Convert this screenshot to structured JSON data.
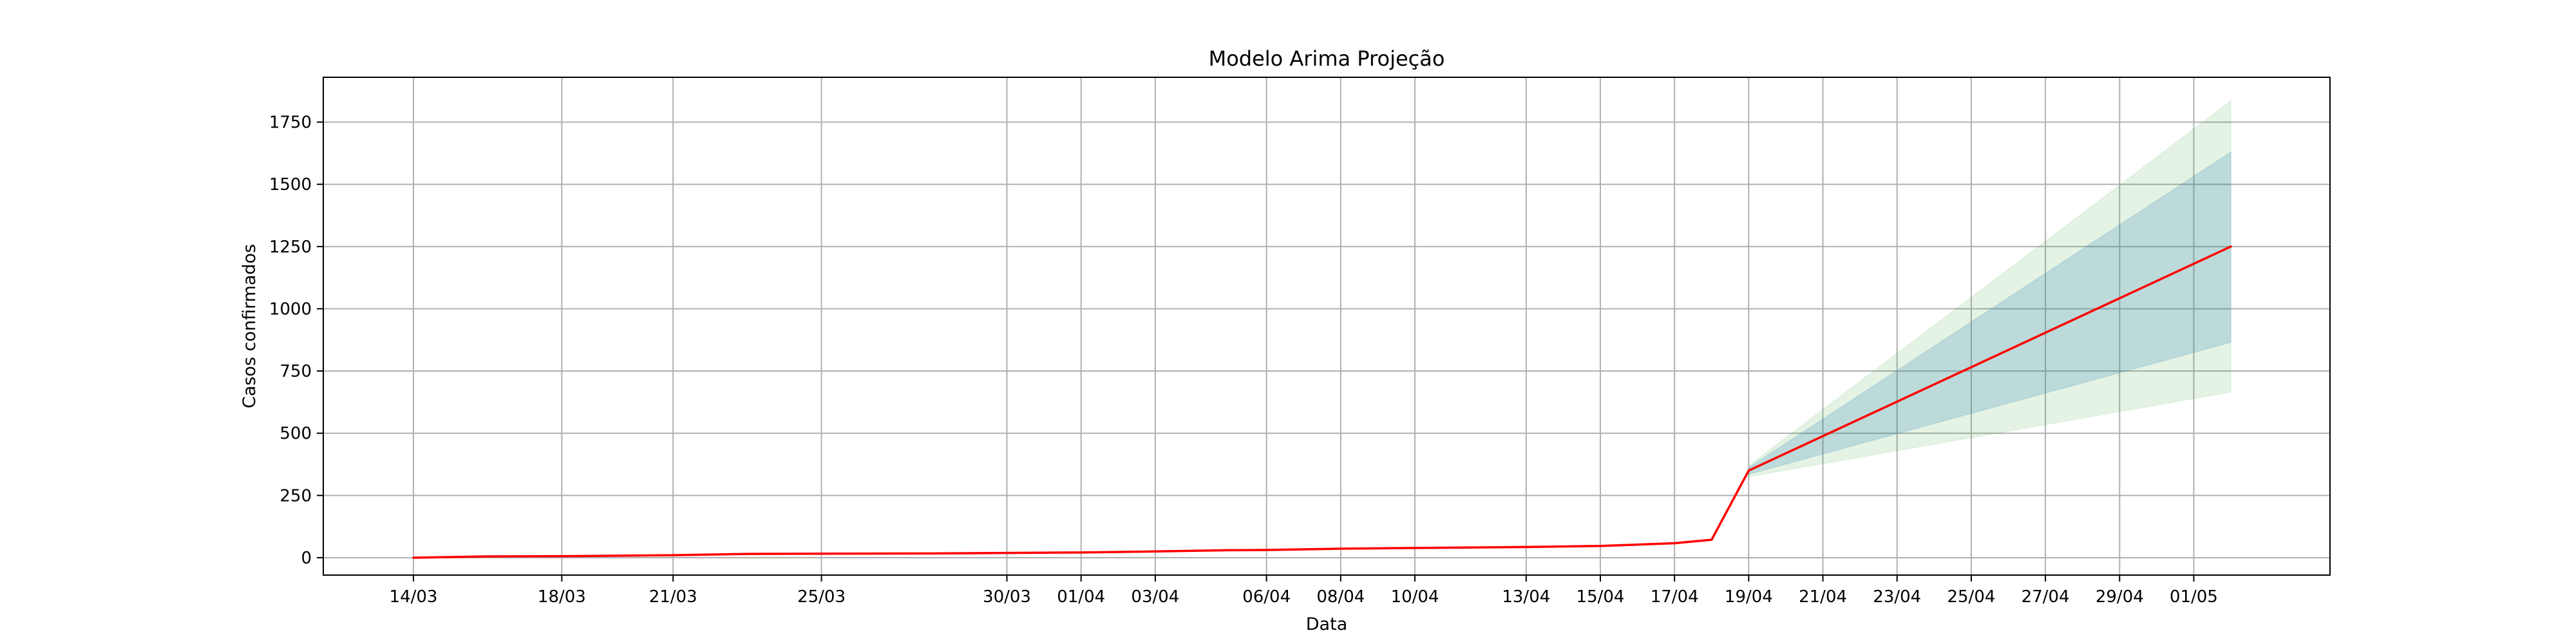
{
  "chart_data": {
    "type": "line",
    "title": "Modelo Arima Projeção",
    "xlabel": "Data",
    "ylabel": "Casos confirmados",
    "ylim": [
      -70,
      1930
    ],
    "yticks": [
      0,
      250,
      500,
      750,
      1000,
      1250,
      1500,
      1750
    ],
    "ytick_labels": [
      "0",
      "250",
      "500",
      "750",
      "1000",
      "1250",
      "1500",
      "1750"
    ],
    "xticks": [
      "14/03",
      "18/03",
      "21/03",
      "25/03",
      "30/03",
      "01/04",
      "03/04",
      "06/04",
      "08/04",
      "10/04",
      "13/04",
      "15/04",
      "17/04",
      "19/04",
      "21/04",
      "23/04",
      "25/04",
      "27/04",
      "29/04",
      "01/05"
    ],
    "grid": true,
    "series": [
      {
        "color": "#ff0000",
        "points": [
          {
            "x": "14/03",
            "y": 0
          },
          {
            "x": "16/03",
            "y": 5
          },
          {
            "x": "18/03",
            "y": 6
          },
          {
            "x": "21/03",
            "y": 10
          },
          {
            "x": "23/03",
            "y": 15
          },
          {
            "x": "25/03",
            "y": 16
          },
          {
            "x": "28/03",
            "y": 17
          },
          {
            "x": "30/03",
            "y": 19
          },
          {
            "x": "01/04",
            "y": 21
          },
          {
            "x": "03/04",
            "y": 25
          },
          {
            "x": "05/04",
            "y": 30
          },
          {
            "x": "06/04",
            "y": 31
          },
          {
            "x": "08/04",
            "y": 36
          },
          {
            "x": "10/04",
            "y": 39
          },
          {
            "x": "13/04",
            "y": 43
          },
          {
            "x": "15/04",
            "y": 47
          },
          {
            "x": "17/04",
            "y": 58
          },
          {
            "x": "18/04",
            "y": 72
          },
          {
            "x": "19/04",
            "y": 350
          },
          {
            "x": "02/05",
            "y": 1250
          }
        ]
      }
    ],
    "confidence_bands": [
      {
        "color": "#2ca02c",
        "opacity": 0.13,
        "points": [
          {
            "x": "19/04",
            "lower": 325,
            "upper": 370
          },
          {
            "x": "02/05",
            "lower": 665,
            "upper": 1835
          }
        ]
      },
      {
        "color": "#1f77b4",
        "opacity": 0.2,
        "points": [
          {
            "x": "19/04",
            "lower": 335,
            "upper": 362
          },
          {
            "x": "02/05",
            "lower": 865,
            "upper": 1630
          }
        ]
      }
    ]
  }
}
